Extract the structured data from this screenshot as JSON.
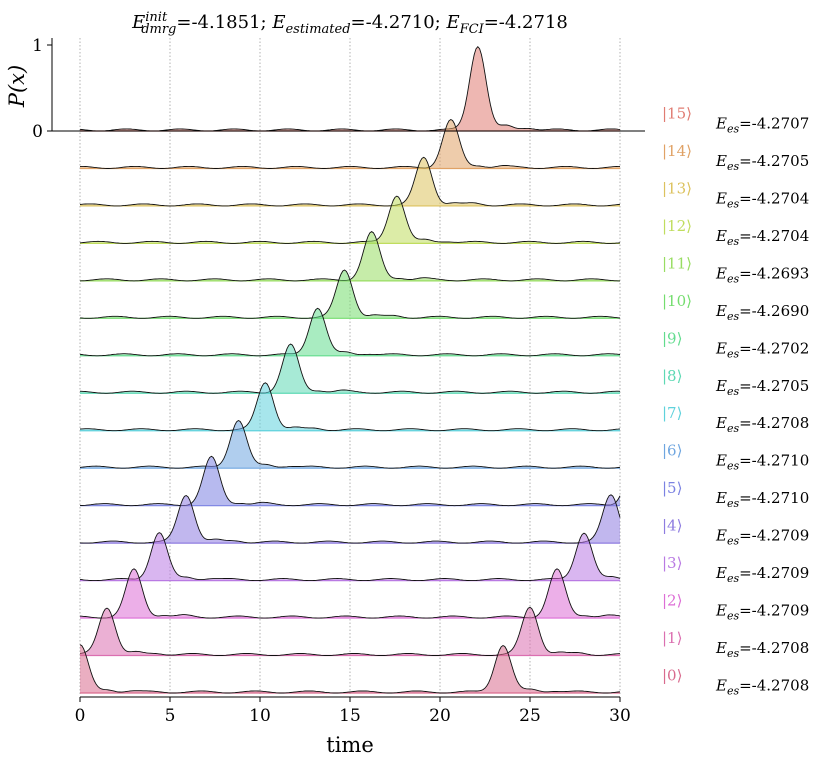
{
  "chart_data": {
    "type": "area",
    "title_parts": [
      {
        "t": "E",
        "italic": true
      },
      {
        "t": "init",
        "italic": true,
        "sup": true
      },
      {
        "t": "dmrg",
        "italic": true,
        "sub": true
      },
      {
        "t": "=-4.1851; "
      },
      {
        "t": "E",
        "italic": true
      },
      {
        "t": "estimated",
        "italic": true,
        "sub": true
      },
      {
        "t": "=-4.2710; "
      },
      {
        "t": "E",
        "italic": true
      },
      {
        "t": "FCI",
        "italic": true,
        "sub": true
      },
      {
        "t": "=-4.2718"
      }
    ],
    "xlabel": "time",
    "ylabel": "P(x)",
    "xlim": [
      0,
      30
    ],
    "xticks": [
      0,
      5,
      10,
      15,
      20,
      25,
      30
    ],
    "yticks": [
      0,
      1
    ],
    "grid_x": true,
    "energy_prefix": "E",
    "energy_sub": "es",
    "series": [
      {
        "state": "|0⟩",
        "energy": "=-4.2708",
        "color": "#d96b8e",
        "peaks": [
          [
            0,
            0.55
          ],
          [
            23.5,
            0.55
          ]
        ],
        "width": 0.45
      },
      {
        "state": "|1⟩",
        "energy": "=-4.2708",
        "color": "#db6fb0",
        "peaks": [
          [
            1.5,
            0.55
          ],
          [
            25.0,
            0.55
          ]
        ],
        "width": 0.45
      },
      {
        "state": "|2⟩",
        "energy": "=-4.2709",
        "color": "#dd6ed6",
        "peaks": [
          [
            3.0,
            0.55
          ],
          [
            26.5,
            0.55
          ]
        ],
        "width": 0.45
      },
      {
        "state": "|3⟩",
        "energy": "=-4.2709",
        "color": "#b97ae3",
        "peaks": [
          [
            4.4,
            0.55
          ],
          [
            28.0,
            0.55
          ]
        ],
        "width": 0.45
      },
      {
        "state": "|4⟩",
        "energy": "=-4.2709",
        "color": "#8e7ce0",
        "peaks": [
          [
            5.9,
            0.55
          ],
          [
            29.5,
            0.55
          ]
        ],
        "width": 0.45
      },
      {
        "state": "|5⟩",
        "energy": "=-4.2710",
        "color": "#7b82e2",
        "peaks": [
          [
            7.3,
            0.55
          ],
          [
            30.8,
            0.55
          ]
        ],
        "width": 0.45
      },
      {
        "state": "|6⟩",
        "energy": "=-4.2710",
        "color": "#6fa6e0",
        "peaks": [
          [
            8.8,
            0.55
          ]
        ],
        "width": 0.45
      },
      {
        "state": "|7⟩",
        "energy": "=-4.2708",
        "color": "#5fd2dc",
        "peaks": [
          [
            10.3,
            0.55
          ]
        ],
        "width": 0.45
      },
      {
        "state": "|8⟩",
        "energy": "=-4.2705",
        "color": "#5ed9b4",
        "peaks": [
          [
            11.7,
            0.55
          ]
        ],
        "width": 0.45
      },
      {
        "state": "|9⟩",
        "energy": "=-4.2702",
        "color": "#62dc8e",
        "peaks": [
          [
            13.2,
            0.55
          ]
        ],
        "width": 0.45
      },
      {
        "state": "|10⟩",
        "energy": "=-4.2690",
        "color": "#74dd6e",
        "peaks": [
          [
            14.7,
            0.55
          ]
        ],
        "width": 0.45
      },
      {
        "state": "|11⟩",
        "energy": "=-4.2693",
        "color": "#98dd62",
        "peaks": [
          [
            16.2,
            0.55
          ]
        ],
        "width": 0.45
      },
      {
        "state": "|12⟩",
        "energy": "=-4.2704",
        "color": "#c0dd5e",
        "peaks": [
          [
            17.6,
            0.55
          ]
        ],
        "width": 0.45
      },
      {
        "state": "|13⟩",
        "energy": "=-4.2704",
        "color": "#dcc25e",
        "peaks": [
          [
            19.1,
            0.55
          ]
        ],
        "width": 0.45
      },
      {
        "state": "|14⟩",
        "energy": "=-4.2705",
        "color": "#e0a266",
        "peaks": [
          [
            20.6,
            0.55
          ]
        ],
        "width": 0.45
      },
      {
        "state": "|15⟩",
        "energy": "=-4.2707",
        "color": "#e07c72",
        "peaks": [
          [
            22.1,
            0.98
          ]
        ],
        "width": 0.45
      }
    ]
  }
}
